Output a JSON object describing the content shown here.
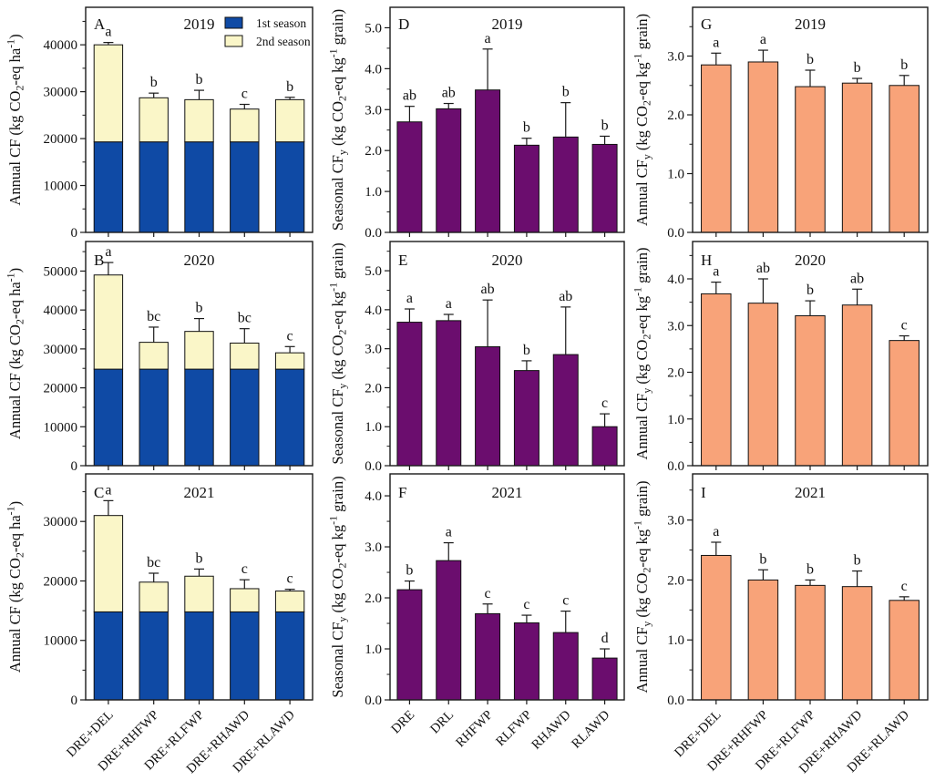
{
  "figure": {
    "background": "#ffffff",
    "text_color": "#111111",
    "axis_color": "#1a1a1a",
    "legend": {
      "panel": "A",
      "items": [
        {
          "label": "1st season",
          "color": "#0f4aa5"
        },
        {
          "label": "2nd season",
          "color": "#faf6c8"
        }
      ]
    },
    "colors": {
      "season1": "#0f4aa5",
      "season2": "#faf6c8",
      "seasonal_cfy": "#6b0d6e",
      "annual_cfy": "#f8a379",
      "bar_edge": "#111111"
    }
  },
  "chart_data": [
    {
      "panel": "A",
      "title": "2019",
      "type": "bar",
      "stacked": true,
      "ylabel": "Annual CF (kg CO~2~-eq ha^-1^)",
      "categories": [
        "DRE+DEL",
        "DRE+RHFWP",
        "DRE+RLFWP",
        "DRE+RHAWD",
        "DRE+RLAWD"
      ],
      "series": [
        {
          "name": "1st season",
          "color": "#0f4aa5",
          "values": [
            19300,
            19300,
            19300,
            19300,
            19300
          ]
        },
        {
          "name": "2nd season",
          "color": "#faf6c8",
          "values": [
            20700,
            9400,
            9000,
            7000,
            9000
          ]
        }
      ],
      "errors": [
        500,
        1000,
        2000,
        1000,
        500
      ],
      "sig_letters": [
        "a",
        "b",
        "b",
        "c",
        "b"
      ],
      "ylim": [
        0,
        48000
      ],
      "yticks": [
        0,
        10000,
        20000,
        30000,
        40000
      ],
      "ytick_labels": [
        "0",
        "10000",
        "20000",
        "30000",
        "40000"
      ],
      "show_xlabels": false,
      "show_legend": true
    },
    {
      "panel": "B",
      "title": "2020",
      "type": "bar",
      "stacked": true,
      "ylabel": "Annual CF (kg CO~2~-eq ha^-1^)",
      "categories": [
        "DRE+DEL",
        "DRE+RHFWP",
        "DRE+RLFWP",
        "DRE+RHAWD",
        "DRE+RLAWD"
      ],
      "series": [
        {
          "name": "1st season",
          "color": "#0f4aa5",
          "values": [
            24800,
            24800,
            24800,
            24800,
            24800
          ]
        },
        {
          "name": "2nd season",
          "color": "#faf6c8",
          "values": [
            24200,
            6900,
            9700,
            6700,
            4200
          ]
        }
      ],
      "errors": [
        3200,
        3900,
        3300,
        3700,
        1600
      ],
      "sig_letters": [
        "a",
        "bc",
        "b",
        "bc",
        "c"
      ],
      "ylim": [
        0,
        57600
      ],
      "yticks": [
        0,
        10000,
        20000,
        30000,
        40000,
        50000
      ],
      "ytick_labels": [
        "0",
        "10000",
        "20000",
        "30000",
        "40000",
        "50000"
      ],
      "show_xlabels": false,
      "show_legend": false
    },
    {
      "panel": "C",
      "title": "2021",
      "type": "bar",
      "stacked": true,
      "ylabel": "Annual CF (kg CO~2~-eq ha^-1^)",
      "categories": [
        "DRE+DEL",
        "DRE+RHFWP",
        "DRE+RLFWP",
        "DRE+RHAWD",
        "DRE+RLAWD"
      ],
      "series": [
        {
          "name": "1st season",
          "color": "#0f4aa5",
          "values": [
            14800,
            14800,
            14800,
            14800,
            14800
          ]
        },
        {
          "name": "2nd season",
          "color": "#faf6c8",
          "values": [
            16200,
            5000,
            6000,
            3900,
            3500
          ]
        }
      ],
      "errors": [
        2500,
        1500,
        1200,
        1500,
        300
      ],
      "sig_letters": [
        "a",
        "bc",
        "b",
        "c",
        "c"
      ],
      "ylim": [
        0,
        38000
      ],
      "yticks": [
        0,
        10000,
        20000,
        30000
      ],
      "ytick_labels": [
        "0",
        "10000",
        "20000",
        "30000"
      ],
      "show_xlabels": true,
      "show_legend": false
    },
    {
      "panel": "D",
      "title": "2019",
      "type": "bar",
      "stacked": false,
      "ylabel": "Seasonal CF~y~ (kg CO~2~-eq kg^-1^ grain)",
      "categories": [
        "DRE",
        "DRL",
        "RHFWP",
        "RLFWP",
        "RHAWD",
        "RLAWD"
      ],
      "color": "#6b0d6e",
      "values": [
        2.7,
        3.02,
        3.48,
        2.13,
        2.33,
        2.15
      ],
      "errors": [
        0.38,
        0.13,
        1.0,
        0.17,
        0.84,
        0.2
      ],
      "sig_letters": [
        "ab",
        "ab",
        "a",
        "b",
        "b",
        "b"
      ],
      "ylim": [
        0,
        5.5
      ],
      "yticks": [
        0,
        1,
        2,
        3,
        4,
        5
      ],
      "ytick_labels": [
        "0.0",
        "1.0",
        "2.0",
        "3.0",
        "4.0",
        "5.0"
      ],
      "show_xlabels": false,
      "show_legend": false
    },
    {
      "panel": "E",
      "title": "2020",
      "type": "bar",
      "stacked": false,
      "ylabel": "Seasonal CF~y~ (kg CO~2~-eq kg^-1^ grain)",
      "categories": [
        "DRE",
        "DRL",
        "RHFWP",
        "RLFWP",
        "RHAWD",
        "RLAWD"
      ],
      "color": "#6b0d6e",
      "values": [
        3.68,
        3.72,
        3.05,
        2.44,
        2.85,
        1.0
      ],
      "errors": [
        0.34,
        0.16,
        1.2,
        0.25,
        1.22,
        0.33
      ],
      "sig_letters": [
        "a",
        "a",
        "ab",
        "b",
        "ab",
        "c"
      ],
      "ylim": [
        0,
        5.75
      ],
      "yticks": [
        0,
        1,
        2,
        3,
        4,
        5
      ],
      "ytick_labels": [
        "0.0",
        "1.0",
        "2.0",
        "3.0",
        "4.0",
        "5.0"
      ],
      "show_xlabels": false,
      "show_legend": false
    },
    {
      "panel": "F",
      "title": "2021",
      "type": "bar",
      "stacked": false,
      "ylabel": "Seasonal CF~y~ (kg CO~2~-eq kg^-1^ grain)",
      "categories": [
        "DRE",
        "DRL",
        "RHFWP",
        "RLFWP",
        "RHAWD",
        "RLAWD"
      ],
      "color": "#6b0d6e",
      "values": [
        2.16,
        2.73,
        1.69,
        1.51,
        1.32,
        0.82
      ],
      "errors": [
        0.17,
        0.35,
        0.19,
        0.15,
        0.42,
        0.18
      ],
      "sig_letters": [
        "b",
        "a",
        "c",
        "c",
        "c",
        "d"
      ],
      "ylim": [
        0,
        4.43
      ],
      "yticks": [
        0,
        1,
        2,
        3,
        4
      ],
      "ytick_labels": [
        "0.0",
        "1.0",
        "2.0",
        "3.0",
        "4.0"
      ],
      "show_xlabels": true,
      "show_legend": false
    },
    {
      "panel": "G",
      "title": "2019",
      "type": "bar",
      "stacked": false,
      "ylabel": "Annual CF~y~ (kg CO~2~-eq kg^-1^ grain)",
      "categories": [
        "DRE+DEL",
        "DRE+RHFWP",
        "DRE+RLFWP",
        "DRE+RHAWD",
        "DRE+RLAWD"
      ],
      "color": "#f8a379",
      "values": [
        2.85,
        2.9,
        2.48,
        2.54,
        2.5
      ],
      "errors": [
        0.2,
        0.2,
        0.28,
        0.08,
        0.17
      ],
      "sig_letters": [
        "a",
        "a",
        "b",
        "b",
        "b"
      ],
      "ylim": [
        0,
        3.83
      ],
      "yticks": [
        0,
        1,
        2,
        3
      ],
      "ytick_labels": [
        "0.0",
        "1.0",
        "2.0",
        "3.0"
      ],
      "show_xlabels": false,
      "show_legend": false
    },
    {
      "panel": "H",
      "title": "2020",
      "type": "bar",
      "stacked": false,
      "ylabel": "Annual CF~y~ (kg CO~2~-eq kg^-1^ grain)",
      "categories": [
        "DRE+DEL",
        "DRE+RHFWP",
        "DRE+RLFWP",
        "DRE+RHAWD",
        "DRE+RLAWD"
      ],
      "color": "#f8a379",
      "values": [
        3.68,
        3.48,
        3.21,
        3.44,
        2.68
      ],
      "errors": [
        0.25,
        0.52,
        0.32,
        0.34,
        0.1
      ],
      "sig_letters": [
        "a",
        "ab",
        "b",
        "ab",
        "c"
      ],
      "ylim": [
        0,
        4.8
      ],
      "yticks": [
        0,
        1,
        2,
        3,
        4
      ],
      "ytick_labels": [
        "0.0",
        "1.0",
        "2.0",
        "3.0",
        "4.0"
      ],
      "show_xlabels": false,
      "show_legend": false
    },
    {
      "panel": "I",
      "title": "2021",
      "type": "bar",
      "stacked": false,
      "ylabel": "Annual CF~y~ (kg CO~2~-eq kg^-1^ grain)",
      "categories": [
        "DRE+DEL",
        "DRE+RHFWP",
        "DRE+RLFWP",
        "DRE+RHAWD",
        "DRE+RLAWD"
      ],
      "color": "#f8a379",
      "values": [
        2.41,
        2.0,
        1.91,
        1.89,
        1.66
      ],
      "errors": [
        0.22,
        0.17,
        0.09,
        0.26,
        0.06
      ],
      "sig_letters": [
        "a",
        "b",
        "b",
        "b",
        "c"
      ],
      "ylim": [
        0,
        3.77
      ],
      "yticks": [
        0,
        1,
        2,
        3
      ],
      "ytick_labels": [
        "0.0",
        "1.0",
        "2.0",
        "3.0"
      ],
      "show_xlabels": true,
      "show_legend": false
    }
  ]
}
